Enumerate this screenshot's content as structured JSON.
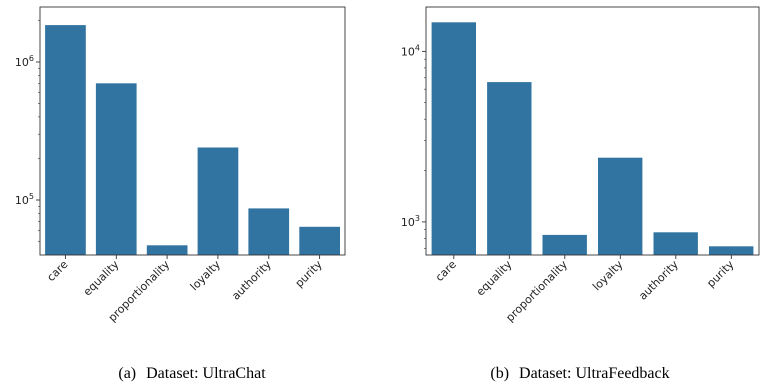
{
  "chart_data": [
    {
      "type": "bar",
      "panel_label": "(a)",
      "caption": "Dataset: UltraChat",
      "categories": [
        "care",
        "equality",
        "proportionality",
        "loyalty",
        "authority",
        "purity"
      ],
      "values": [
        1850000,
        700000,
        47000,
        240000,
        87000,
        64000
      ],
      "yscale": "log",
      "ylim": [
        40000,
        2500000
      ],
      "yticks": [
        {
          "base": "10",
          "exp": "5",
          "value": 100000
        },
        {
          "base": "10",
          "exp": "6",
          "value": 1000000
        }
      ],
      "bar_color": "#3274a1",
      "xlabel": "",
      "ylabel": "",
      "title": ""
    },
    {
      "type": "bar",
      "panel_label": "(b)",
      "caption": "Dataset: UltraFeedback",
      "categories": [
        "care",
        "equality",
        "proportionality",
        "loyalty",
        "authority",
        "purity"
      ],
      "values": [
        14800,
        6600,
        840,
        2380,
        870,
        720
      ],
      "yscale": "log",
      "ylim": [
        640,
        18200
      ],
      "yticks": [
        {
          "base": "10",
          "exp": "3",
          "value": 1000
        },
        {
          "base": "10",
          "exp": "4",
          "value": 10000
        }
      ],
      "bar_color": "#3274a1",
      "xlabel": "",
      "ylabel": "",
      "title": ""
    }
  ]
}
